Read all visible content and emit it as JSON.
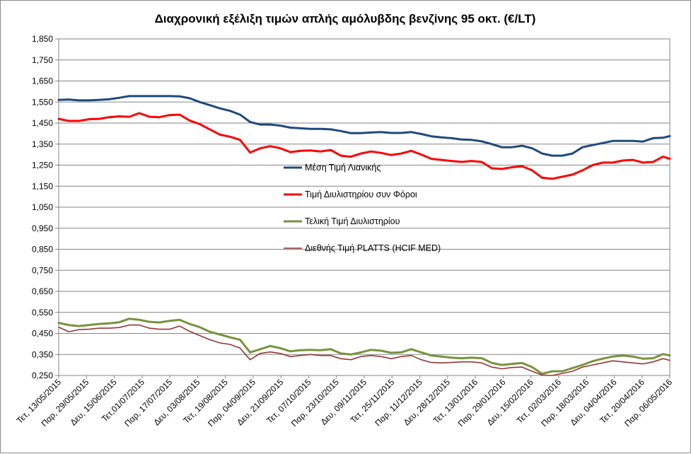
{
  "chart_data": {
    "type": "line",
    "title": "Διαχρονική εξέλιξη τιμών απλής αμόλυβδης βενζίνης 95 οκτ. (€/LT)",
    "xlabel": "",
    "ylabel": "",
    "ylim": [
      0.25,
      1.85
    ],
    "yticks": [
      "1,850",
      "1,750",
      "1,650",
      "1,550",
      "1,450",
      "1,350",
      "1,250",
      "1,150",
      "1,050",
      "0,950",
      "0,850",
      "0,750",
      "0,650",
      "0,550",
      "0,450",
      "0,350",
      "0,250"
    ],
    "ytick_values": [
      1.85,
      1.75,
      1.65,
      1.55,
      1.45,
      1.35,
      1.25,
      1.15,
      1.05,
      0.95,
      0.85,
      0.75,
      0.65,
      0.55,
      0.45,
      0.35,
      0.25
    ],
    "grid": true,
    "legend_position": "center",
    "x_tick_labels": [
      "Τετ, 13/05/2015",
      "Παρ, 29/05/2015",
      "Δευ, 15/06/2015",
      "Τετ,01/07/2015",
      "Παρ, 17/07/2015",
      "Δευ, 03/08/2015",
      "Τετ, 19/08/2015",
      "Παρ, 04/09/2015",
      "Δευ, 21/09/2015",
      "Τετ, 07/10/2015",
      "Παρ, 23/10/2015",
      "Δευ, 09/11/2015",
      "Τετ, 25/11/2015",
      "Παρ, 11/12/2015",
      "Δευ, 28/12/2015",
      "Τετ, 13/01/2016",
      "Παρ, 29/01/2016",
      "Δευ, 15/02/2016",
      "Τετ, 02/03/2016",
      "Παρ, 18/03/2016",
      "Δευ, 04/04/2016",
      "Τετ, 20/04/2016",
      "Παρ, 06/05/2016"
    ],
    "x": [
      "13/05/2015",
      "19/05/2015",
      "25/05/2015",
      "31/05/2015",
      "06/06/2015",
      "12/06/2015",
      "18/06/2015",
      "24/06/2015",
      "30/06/2015",
      "06/07/2015",
      "12/07/2015",
      "18/07/2015",
      "24/07/2015",
      "30/07/2015",
      "05/08/2015",
      "11/08/2015",
      "17/08/2015",
      "23/08/2015",
      "29/08/2015",
      "04/09/2015",
      "10/09/2015",
      "16/09/2015",
      "22/09/2015",
      "28/09/2015",
      "04/10/2015",
      "10/10/2015",
      "16/10/2015",
      "22/10/2015",
      "28/10/2015",
      "03/11/2015",
      "09/11/2015",
      "15/11/2015",
      "21/11/2015",
      "27/11/2015",
      "03/12/2015",
      "09/12/2015",
      "15/12/2015",
      "21/12/2015",
      "27/12/2015",
      "02/01/2016",
      "08/01/2016",
      "14/01/2016",
      "20/01/2016",
      "26/01/2016",
      "01/02/2016",
      "07/02/2016",
      "13/02/2016",
      "19/02/2016",
      "25/02/2016",
      "02/03/2016",
      "08/03/2016",
      "14/03/2016",
      "20/03/2016",
      "26/03/2016",
      "01/04/2016",
      "07/04/2016",
      "13/04/2016",
      "19/04/2016",
      "25/04/2016",
      "01/05/2016",
      "07/05/2016",
      "11/05/2016"
    ],
    "series": [
      {
        "name": "Μέση Τιμή Λιανικής",
        "color": "#1f497d",
        "values": [
          1.56,
          1.562,
          1.558,
          1.558,
          1.56,
          1.563,
          1.57,
          1.578,
          1.578,
          1.578,
          1.578,
          1.578,
          1.577,
          1.568,
          1.55,
          1.535,
          1.52,
          1.508,
          1.49,
          1.455,
          1.443,
          1.443,
          1.438,
          1.428,
          1.425,
          1.422,
          1.422,
          1.42,
          1.412,
          1.402,
          1.402,
          1.405,
          1.407,
          1.403,
          1.403,
          1.407,
          1.398,
          1.387,
          1.382,
          1.378,
          1.372,
          1.37,
          1.363,
          1.35,
          1.335,
          1.335,
          1.342,
          1.33,
          1.305,
          1.295,
          1.295,
          1.305,
          1.335,
          1.345,
          1.355,
          1.365,
          1.365,
          1.365,
          1.362,
          1.378,
          1.38,
          1.388
        ]
      },
      {
        "name": "Τιμή Διυλιστηρίου συν Φόροι",
        "color": "#ff0000",
        "values": [
          1.47,
          1.46,
          1.46,
          1.468,
          1.47,
          1.478,
          1.482,
          1.48,
          1.497,
          1.48,
          1.478,
          1.488,
          1.49,
          1.462,
          1.445,
          1.42,
          1.395,
          1.385,
          1.37,
          1.31,
          1.33,
          1.34,
          1.33,
          1.312,
          1.318,
          1.32,
          1.315,
          1.322,
          1.295,
          1.29,
          1.305,
          1.315,
          1.308,
          1.298,
          1.305,
          1.318,
          1.3,
          1.28,
          1.275,
          1.27,
          1.265,
          1.27,
          1.265,
          1.235,
          1.232,
          1.24,
          1.245,
          1.225,
          1.19,
          1.185,
          1.195,
          1.205,
          1.225,
          1.25,
          1.262,
          1.262,
          1.272,
          1.275,
          1.262,
          1.265,
          1.29,
          1.28
        ]
      },
      {
        "name": "Τελική Τιμή Διυλιστηρίου",
        "color": "#77933c",
        "values": [
          0.5,
          0.49,
          0.485,
          0.49,
          0.495,
          0.498,
          0.503,
          0.52,
          0.515,
          0.505,
          0.502,
          0.51,
          0.515,
          0.495,
          0.48,
          0.458,
          0.445,
          0.432,
          0.42,
          0.36,
          0.375,
          0.39,
          0.38,
          0.365,
          0.37,
          0.372,
          0.37,
          0.375,
          0.355,
          0.35,
          0.36,
          0.372,
          0.368,
          0.358,
          0.36,
          0.375,
          0.36,
          0.345,
          0.34,
          0.335,
          0.332,
          0.335,
          0.332,
          0.31,
          0.3,
          0.305,
          0.31,
          0.29,
          0.258,
          0.27,
          0.27,
          0.285,
          0.3,
          0.318,
          0.33,
          0.34,
          0.345,
          0.34,
          0.33,
          0.332,
          0.352,
          0.345
        ]
      },
      {
        "name": "Διεθνής Τιμή PLATTS (HCIF MED)",
        "color": "#953735",
        "values": [
          0.48,
          0.458,
          0.468,
          0.47,
          0.475,
          0.475,
          0.478,
          0.49,
          0.49,
          0.475,
          0.47,
          0.47,
          0.485,
          0.46,
          0.44,
          0.42,
          0.405,
          0.398,
          0.38,
          0.325,
          0.355,
          0.362,
          0.355,
          0.34,
          0.345,
          0.35,
          0.345,
          0.345,
          0.33,
          0.325,
          0.34,
          0.345,
          0.34,
          0.33,
          0.34,
          0.345,
          0.325,
          0.312,
          0.31,
          0.312,
          0.315,
          0.315,
          0.31,
          0.29,
          0.282,
          0.288,
          0.29,
          0.27,
          0.252,
          0.25,
          0.26,
          0.27,
          0.29,
          0.3,
          0.31,
          0.32,
          0.315,
          0.31,
          0.305,
          0.315,
          0.33,
          0.322
        ]
      }
    ]
  }
}
